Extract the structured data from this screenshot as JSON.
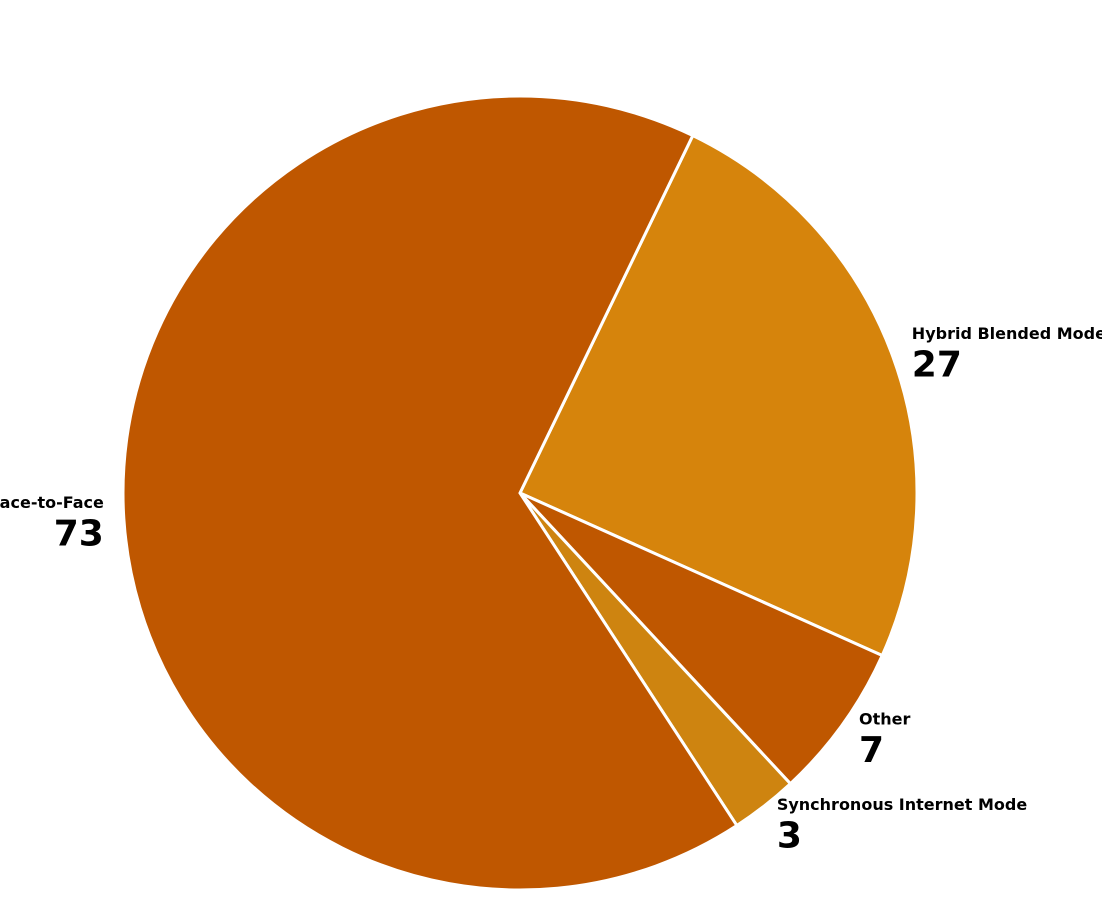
{
  "chart_data": {
    "type": "pie",
    "categories": [
      "Hybrid Blended Mode",
      "Other",
      "Synchronous Internet Mode",
      "Face-to-Face"
    ],
    "values": [
      27,
      7,
      3,
      73
    ],
    "colors": [
      "#d6840c",
      "#bf5700",
      "#ce8410",
      "#bf5700"
    ]
  }
}
